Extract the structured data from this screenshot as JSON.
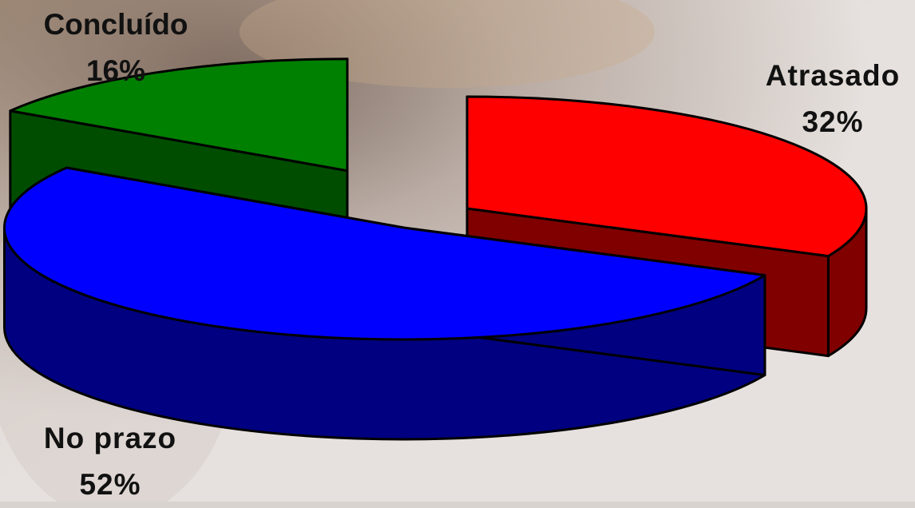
{
  "chart_data": {
    "type": "pie",
    "style": "3d-exploded",
    "slices": [
      {
        "label": "Concluído",
        "value": 16,
        "percent_label": "16%",
        "top_color": "#008000",
        "side_color": "#004d00"
      },
      {
        "label": "Atrasado",
        "value": 32,
        "percent_label": "32%",
        "top_color": "#ff0000",
        "side_color": "#800000"
      },
      {
        "label": "No prazo",
        "value": 52,
        "percent_label": "52%",
        "top_color": "#0000ff",
        "side_color": "#000080"
      }
    ]
  }
}
